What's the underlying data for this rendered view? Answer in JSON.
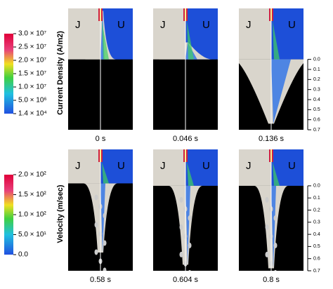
{
  "rows": [
    {
      "colorbar": {
        "label": "Current Density (A/m2)",
        "ticks": [
          "3.0 × 10⁷",
          "2.5 × 10⁷",
          "2.0 × 10⁷",
          "1.5 × 10⁷",
          "1.0 × 10⁷",
          "5.0 × 10⁶",
          "1.4 × 10⁴"
        ]
      },
      "panels": [
        {
          "left_label": "J",
          "right_label": "U",
          "time": "0 s"
        },
        {
          "left_label": "J",
          "right_label": "U",
          "time": "0.046 s"
        },
        {
          "left_label": "J",
          "right_label": "U",
          "time": "0.136 s"
        }
      ],
      "scale": {
        "ticks": [
          "0.0",
          "0.1",
          "0.2",
          "0.3",
          "0.4",
          "0.5",
          "0.6",
          "0.7"
        ]
      }
    },
    {
      "colorbar": {
        "label": "Velocity (m/sec)",
        "ticks": [
          "2.0 × 10²",
          "1.5 × 10²",
          "1.0 × 10²",
          "5.0 × 10¹",
          "0.0"
        ]
      },
      "panels": [
        {
          "left_label": "J",
          "right_label": "U",
          "time": "0.58 s"
        },
        {
          "left_label": "J",
          "right_label": "U",
          "time": "0.604 s"
        },
        {
          "left_label": "J",
          "right_label": "U",
          "time": "0.8 s"
        }
      ],
      "scale": {
        "ticks": [
          "0.0",
          "0.1",
          "0.2",
          "0.3",
          "0.4",
          "0.5",
          "0.6",
          "0.7"
        ]
      }
    }
  ]
}
